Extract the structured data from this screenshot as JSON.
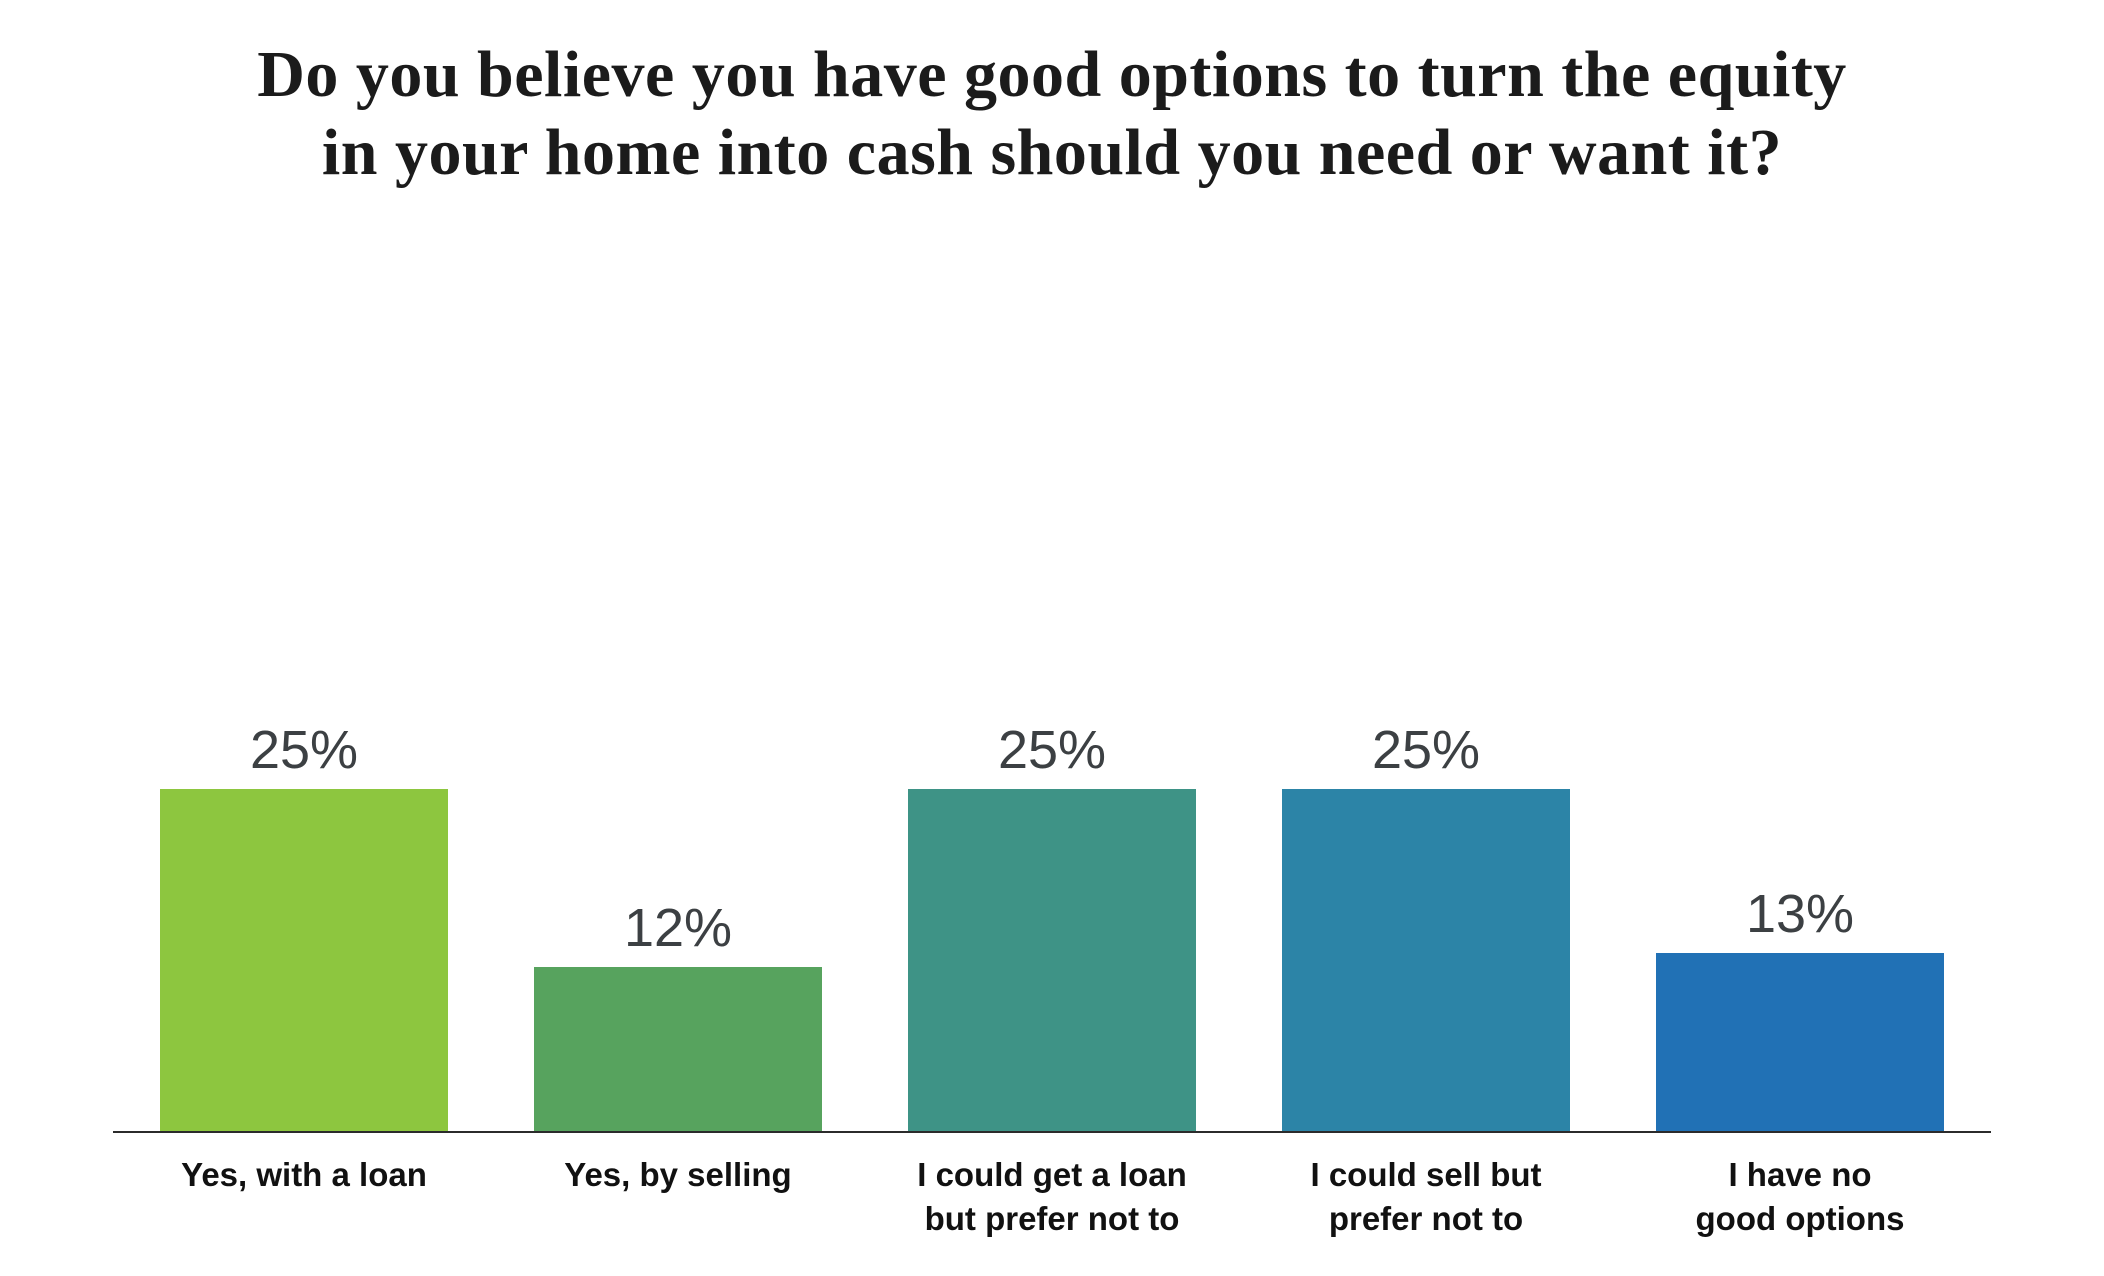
{
  "chart_data": {
    "type": "bar",
    "title": "Do you believe you have good options to turn the equity in your home into cash should you need or want it?",
    "title_lines": [
      "Do you believe you have good options to turn the equity",
      "in your home into cash should you need or want it?"
    ],
    "categories": [
      "Yes, with a loan",
      "Yes, by selling",
      "I could get a loan but prefer not to",
      "I could sell but prefer not to",
      "I have no good options"
    ],
    "category_display": [
      "Yes, with a loan",
      "Yes, by selling",
      "I could get a loan\nbut prefer not to",
      "I could sell but\nprefer not to",
      "I have no\ngood options"
    ],
    "values": [
      25,
      12,
      25,
      25,
      13
    ],
    "value_labels": [
      "25%",
      "12%",
      "25%",
      "25%",
      "13%"
    ],
    "colors": [
      "#8dc63f",
      "#57a35e",
      "#3e9386",
      "#2c84a7",
      "#2171b5"
    ],
    "xlabel": "",
    "ylabel": "",
    "ylim": [
      0,
      30
    ],
    "grid": false,
    "legend": false,
    "axis_line_color": "#2b2b2b"
  }
}
